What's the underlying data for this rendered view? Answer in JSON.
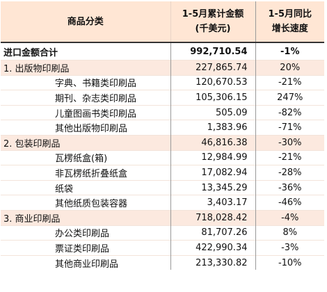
{
  "table": {
    "header": {
      "category": "商品分类",
      "amount_line1": "1-5月累计金额",
      "amount_line2": "(千美元)",
      "growth_line1": "1-5月同比",
      "growth_line2": "增长速度"
    },
    "total": {
      "category": "进口金额合计",
      "amount": "992,710.54",
      "growth": "-1%"
    },
    "sections": [
      {
        "category": "1. 出版物印刷品",
        "amount": "227,865.74",
        "growth": "20%",
        "items": [
          {
            "category": "字典、书籍类印刷品",
            "amount": "120,670.53",
            "growth": "-21%"
          },
          {
            "category": "期刊、杂志类印刷品",
            "amount": "105,306.15",
            "growth": "247%"
          },
          {
            "category": "儿童图画书类印刷品",
            "amount": "505.09",
            "growth": "-82%"
          },
          {
            "category": "其他出版物印刷品",
            "amount": "1,383.96",
            "growth": "-71%"
          }
        ]
      },
      {
        "category": "2. 包装印刷品",
        "amount": "46,816.38",
        "growth": "-30%",
        "items": [
          {
            "category": "瓦楞纸盒(箱)",
            "amount": "12,984.99",
            "growth": "-21%"
          },
          {
            "category": "非瓦楞纸折叠纸盒",
            "amount": "17,082.94",
            "growth": "-28%"
          },
          {
            "category": "纸袋",
            "amount": "13,345.29",
            "growth": "-36%"
          },
          {
            "category": "其他纸质包装容器",
            "amount": "3,403.17",
            "growth": "-46%"
          }
        ]
      },
      {
        "category": "3. 商业印刷品",
        "amount": "718,028.42",
        "growth": "-4%",
        "items": [
          {
            "category": "办公类印刷品",
            "amount": "81,707.26",
            "growth": "8%"
          },
          {
            "category": "票证类印刷品",
            "amount": "422,990.34",
            "growth": "-3%"
          },
          {
            "category": "其他商业印刷品",
            "amount": "213,330.82",
            "growth": "-10%"
          }
        ]
      }
    ]
  },
  "colors": {
    "header_bg": "#ffe6d4",
    "section_bg": "#fce9df",
    "rule": "#333333"
  }
}
